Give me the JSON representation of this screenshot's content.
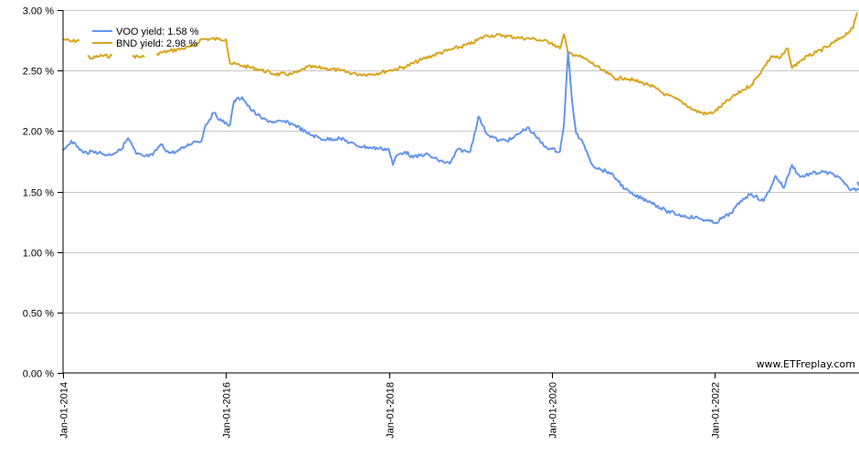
{
  "chart_data": {
    "type": "line",
    "title": "",
    "xlabel": "",
    "ylabel": "",
    "ylim": [
      0,
      3.0
    ],
    "y_ticks": [
      "0.00 %",
      "0.50 %",
      "1.00 %",
      "1.50 %",
      "2.00 %",
      "2.50 %",
      "3.00 %"
    ],
    "y_tick_values": [
      0,
      0.5,
      1.0,
      1.5,
      2.0,
      2.5,
      3.0
    ],
    "x_ticks": [
      "Jan-01-2014",
      "Jan-01-2016",
      "Jan-01-2018",
      "Jan-01-2020",
      "Jan-01-2022"
    ],
    "x_tick_years": [
      2014,
      2016,
      2018,
      2020,
      2022
    ],
    "x_range": [
      2014.0,
      2023.85
    ],
    "grid": {
      "horizontal": true,
      "vertical": false
    },
    "legend": {
      "position": "top-left"
    },
    "watermark": "www.ETFreplay.com",
    "series": [
      {
        "name": "VOO yield",
        "legend_label": "VOO yield: 1.58 %",
        "color": "#6495ED",
        "x": [
          2014.0,
          2014.1,
          2014.25,
          2014.4,
          2014.55,
          2014.7,
          2014.8,
          2014.9,
          2015.0,
          2015.1,
          2015.2,
          2015.3,
          2015.4,
          2015.5,
          2015.6,
          2015.7,
          2015.75,
          2015.85,
          2015.95,
          2016.05,
          2016.1,
          2016.2,
          2016.3,
          2016.45,
          2016.6,
          2016.7,
          2016.85,
          2017.0,
          2017.2,
          2017.4,
          2017.6,
          2017.8,
          2018.0,
          2018.05,
          2018.1,
          2018.2,
          2018.3,
          2018.45,
          2018.6,
          2018.75,
          2018.85,
          2018.95,
          2019.0,
          2019.1,
          2019.2,
          2019.35,
          2019.5,
          2019.6,
          2019.7,
          2019.8,
          2019.9,
          2020.0,
          2020.1,
          2020.15,
          2020.2,
          2020.25,
          2020.3,
          2020.4,
          2020.5,
          2020.6,
          2020.7,
          2020.8,
          2020.9,
          2021.0,
          2021.2,
          2021.4,
          2021.6,
          2021.8,
          2021.9,
          2022.0,
          2022.2,
          2022.35,
          2022.45,
          2022.6,
          2022.7,
          2022.75,
          2022.85,
          2022.95,
          2023.05,
          2023.2,
          2023.35,
          2023.5,
          2023.65,
          2023.8,
          2023.85
        ],
        "values": [
          1.84,
          1.92,
          1.82,
          1.83,
          1.8,
          1.84,
          1.94,
          1.81,
          1.79,
          1.8,
          1.89,
          1.82,
          1.83,
          1.87,
          1.91,
          1.92,
          2.05,
          2.15,
          2.08,
          2.05,
          2.25,
          2.28,
          2.18,
          2.1,
          2.07,
          2.08,
          2.05,
          1.98,
          1.93,
          1.94,
          1.88,
          1.86,
          1.85,
          1.72,
          1.8,
          1.83,
          1.78,
          1.81,
          1.76,
          1.73,
          1.85,
          1.83,
          1.83,
          2.12,
          1.98,
          1.92,
          1.93,
          1.98,
          2.03,
          1.96,
          1.88,
          1.85,
          1.83,
          2.05,
          2.65,
          2.25,
          1.98,
          1.88,
          1.72,
          1.68,
          1.66,
          1.6,
          1.52,
          1.47,
          1.42,
          1.34,
          1.3,
          1.28,
          1.26,
          1.24,
          1.32,
          1.44,
          1.48,
          1.42,
          1.55,
          1.63,
          1.53,
          1.72,
          1.62,
          1.65,
          1.66,
          1.63,
          1.52,
          1.52,
          1.58
        ]
      },
      {
        "name": "BND yield",
        "legend_label": "BND yield: 2.98 %",
        "color": "#DAA520",
        "x": [
          2014.0,
          2014.1,
          2014.2,
          2014.25,
          2014.3,
          2014.35,
          2014.45,
          2014.6,
          2014.75,
          2014.85,
          2015.0,
          2015.05,
          2015.15,
          2015.3,
          2015.45,
          2015.6,
          2015.7,
          2015.75,
          2015.9,
          2016.0,
          2016.05,
          2016.2,
          2016.4,
          2016.6,
          2016.8,
          2016.9,
          2017.0,
          2017.2,
          2017.4,
          2017.6,
          2017.8,
          2018.0,
          2018.2,
          2018.4,
          2018.6,
          2018.8,
          2019.0,
          2019.2,
          2019.4,
          2019.6,
          2019.8,
          2020.0,
          2020.1,
          2020.15,
          2020.2,
          2020.3,
          2020.45,
          2020.6,
          2020.7,
          2020.8,
          2020.9,
          2021.0,
          2021.1,
          2021.2,
          2021.4,
          2021.6,
          2021.75,
          2021.9,
          2022.0,
          2022.2,
          2022.35,
          2022.45,
          2022.6,
          2022.7,
          2022.8,
          2022.9,
          2022.95,
          2023.05,
          2023.15,
          2023.25,
          2023.4,
          2023.55,
          2023.7,
          2023.85
        ],
        "values": [
          2.76,
          2.74,
          2.75,
          null,
          2.62,
          2.6,
          2.62,
          2.62,
          null,
          2.62,
          2.61,
          null,
          2.64,
          2.66,
          2.68,
          2.7,
          2.76,
          2.76,
          2.76,
          2.76,
          2.56,
          2.54,
          2.51,
          2.47,
          2.47,
          2.49,
          2.53,
          2.52,
          2.5,
          2.47,
          2.47,
          2.5,
          2.53,
          2.59,
          2.64,
          2.68,
          2.72,
          2.79,
          2.79,
          2.77,
          2.76,
          2.73,
          2.68,
          2.8,
          2.64,
          2.63,
          2.58,
          2.51,
          2.47,
          2.43,
          2.44,
          2.42,
          2.4,
          2.38,
          2.3,
          2.24,
          2.17,
          2.14,
          2.16,
          2.27,
          2.34,
          2.38,
          2.52,
          2.62,
          2.6,
          2.68,
          2.52,
          2.58,
          2.62,
          2.65,
          2.7,
          2.77,
          2.85,
          2.98
        ]
      }
    ]
  }
}
